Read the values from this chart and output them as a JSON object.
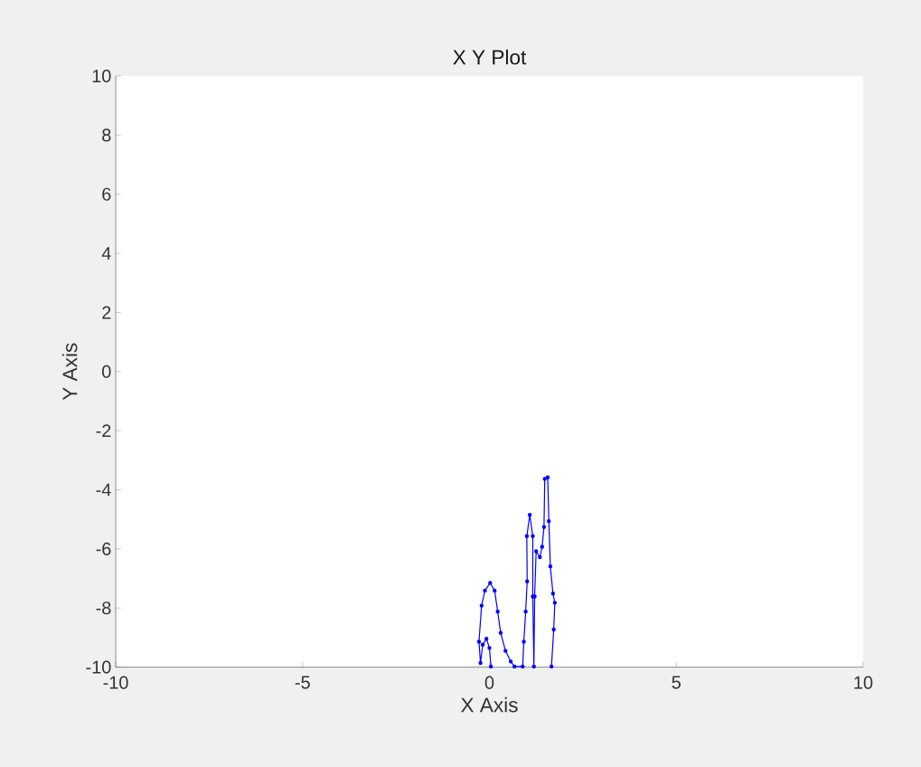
{
  "chart_data": {
    "type": "line",
    "title": "X Y Plot",
    "xlabel": "X Axis",
    "ylabel": "Y Axis",
    "xlim": [
      -10,
      10
    ],
    "ylim": [
      -10,
      10
    ],
    "xticks": [
      -10,
      -5,
      0,
      5,
      10
    ],
    "yticks": [
      -10,
      -8,
      -6,
      -4,
      -2,
      0,
      2,
      4,
      6,
      8,
      10
    ],
    "grid": false,
    "marker": "circle",
    "line_style": "solid",
    "series": [
      {
        "color": "#0000ff",
        "x": [
          0.04,
          0.0,
          -0.08,
          -0.18,
          -0.24,
          -0.28,
          -0.21,
          -0.12,
          0.02,
          0.14,
          0.22,
          0.3,
          0.43,
          0.57,
          0.67,
          0.89,
          0.92,
          0.97,
          1.01,
          1.0,
          1.08,
          1.16,
          1.16,
          1.19,
          1.21,
          1.25,
          1.35,
          1.41,
          1.46,
          1.48,
          1.56,
          1.59,
          1.63,
          1.7,
          1.75,
          1.72,
          1.66
        ],
        "values": [
          -9.98,
          -9.35,
          -9.04,
          -9.24,
          -9.86,
          -9.14,
          -7.92,
          -7.41,
          -7.15,
          -7.41,
          -8.12,
          -8.84,
          -9.45,
          -9.81,
          -9.98,
          -9.98,
          -9.14,
          -8.12,
          -7.1,
          -5.57,
          -4.85,
          -5.57,
          -7.61,
          -9.98,
          -7.61,
          -6.08,
          -6.28,
          -5.93,
          -5.26,
          -3.63,
          -3.58,
          -5.06,
          -6.59,
          -7.51,
          -7.82,
          -8.73,
          -9.98
        ]
      }
    ]
  }
}
